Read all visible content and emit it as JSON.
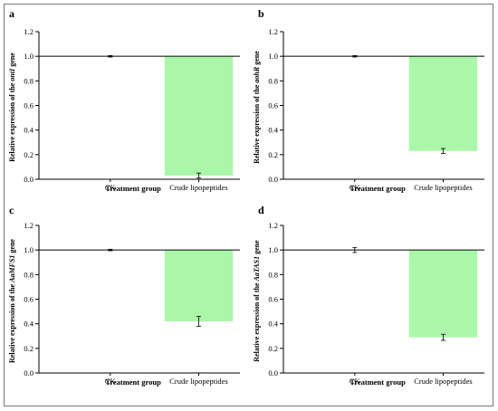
{
  "figure": {
    "panels": [
      {
        "letter": "a",
        "ylabel_prefix": "Relative expression of the ",
        "gene": "ontI",
        "ylabel_suffix": " gene",
        "xlabel": "Treatment group"
      },
      {
        "letter": "b",
        "ylabel_prefix": "Relative expression of the ",
        "gene": "aohR",
        "ylabel_suffix": " gene",
        "xlabel": "Treatment group"
      },
      {
        "letter": "c",
        "ylabel_prefix": "Relative expression of the ",
        "gene": "AaMFS1",
        "ylabel_suffix": " gene",
        "xlabel": "Treatment group"
      },
      {
        "letter": "d",
        "ylabel_prefix": "Relative expression of the ",
        "gene": "AaTAS1",
        "ylabel_suffix": " gene",
        "xlabel": "Treatment group"
      }
    ]
  },
  "colors": {
    "bar_fill": "#aaf7aa",
    "axis": "#000000",
    "frame": "#777777"
  },
  "chart_data": [
    {
      "type": "bar",
      "categories": [
        "CK",
        "Crude lipopeptides"
      ],
      "values": [
        1.0,
        0.03
      ],
      "errors": [
        0.006,
        0.02
      ],
      "bar_base": 1.0,
      "ylim": [
        0,
        1.2
      ],
      "yticks": [
        "0.0",
        "0.2",
        "0.4",
        "0.6",
        "0.8",
        "1.0",
        "1.2"
      ],
      "reference_line": 1.0
    },
    {
      "type": "bar",
      "categories": [
        "CK",
        "Crude lipopeptides"
      ],
      "values": [
        1.0,
        0.23
      ],
      "errors": [
        0.006,
        0.02
      ],
      "bar_base": 1.0,
      "ylim": [
        0,
        1.2
      ],
      "yticks": [
        "0.0",
        "0.2",
        "0.4",
        "0.6",
        "0.8",
        "1.0",
        "1.2"
      ],
      "reference_line": 1.0
    },
    {
      "type": "bar",
      "categories": [
        "CK",
        "Crude lipopeptides"
      ],
      "values": [
        1.0,
        0.42
      ],
      "errors": [
        0.006,
        0.04
      ],
      "bar_base": 1.0,
      "ylim": [
        0,
        1.2
      ],
      "yticks": [
        "0.0",
        "0.2",
        "0.4",
        "0.6",
        "0.8",
        "1.0",
        "1.2"
      ],
      "reference_line": 1.0
    },
    {
      "type": "bar",
      "categories": [
        "CK",
        "Crude lipopeptides"
      ],
      "values": [
        1.0,
        0.29
      ],
      "errors": [
        0.02,
        0.025
      ],
      "bar_base": 1.0,
      "ylim": [
        0,
        1.2
      ],
      "yticks": [
        "0.0",
        "0.2",
        "0.4",
        "0.6",
        "0.8",
        "1.0",
        "1.2"
      ],
      "reference_line": 1.0
    }
  ]
}
